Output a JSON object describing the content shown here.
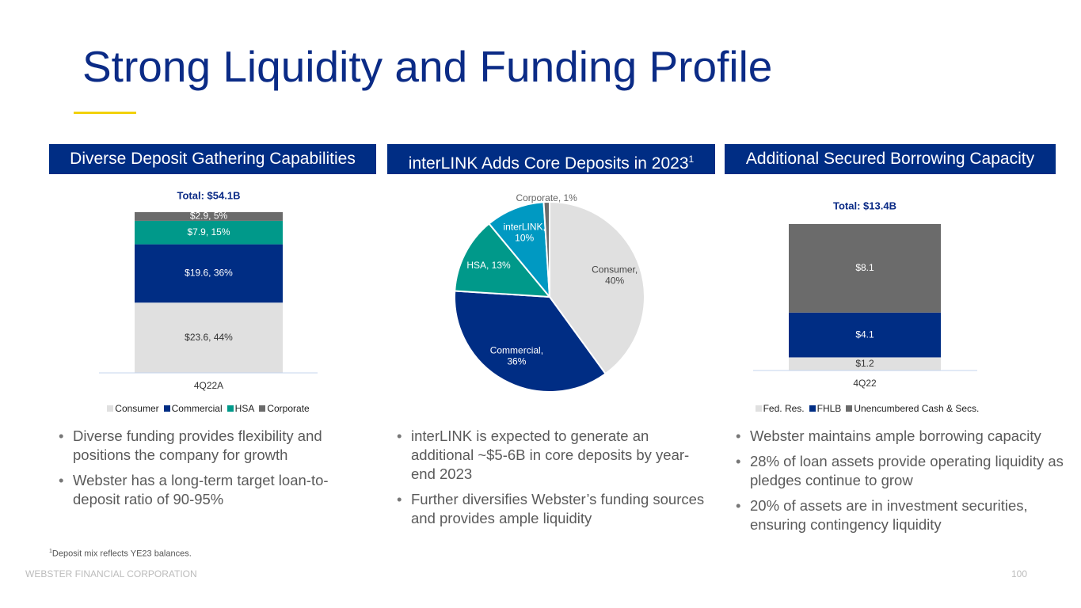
{
  "title": "Strong Liquidity and Funding Profile",
  "panels": [
    {
      "header": "Diverse Deposit Gathering Capabilities",
      "bullets": [
        "Diverse funding provides flexibility and positions the company for growth",
        "Webster has a long-term target loan-to-deposit ratio of 90-95%"
      ]
    },
    {
      "header": "interLINK Adds Core Deposits in 2023",
      "header_note": "1",
      "bullets": [
        "interLINK is expected to generate an additional ~$5-6B in core deposits by year-end 2023",
        "Further diversifies Webster’s funding sources and provides ample liquidity"
      ]
    },
    {
      "header": "Additional Secured Borrowing Capacity",
      "bullets": [
        "Webster maintains ample borrowing capacity",
        "28% of loan assets provide operating liquidity as pledges continue to grow",
        "20% of assets are in investment securities, ensuring contingency liquidity"
      ]
    }
  ],
  "chart_data": [
    {
      "type": "stacked-bar",
      "title": "Total: $54.1B",
      "categories": [
        "4Q22A"
      ],
      "series": [
        {
          "name": "Consumer",
          "color": "#e0e0e0",
          "values": [
            23.6
          ],
          "value_labels": [
            "$23.6, 44%"
          ]
        },
        {
          "name": "Commercial",
          "color": "#002d84",
          "values": [
            19.6
          ],
          "value_labels": [
            "$19.6, 36%"
          ]
        },
        {
          "name": "HSA",
          "color": "#00998a",
          "values": [
            7.9
          ],
          "value_labels": [
            "$7.9, 15%"
          ]
        },
        {
          "name": "Corporate",
          "color": "#6b6b6b",
          "values": [
            2.9
          ],
          "value_labels": [
            "$2.9, 5%"
          ]
        }
      ]
    },
    {
      "type": "pie",
      "categories": [
        "Consumer",
        "Commercial",
        "HSA",
        "interLINK",
        "Corporate"
      ],
      "values": [
        40,
        36,
        13,
        10,
        1
      ],
      "value_labels": [
        "Consumer, 40%",
        "Commercial, 36%",
        "HSA, 13%",
        "interLINK, 10%",
        "Corporate, 1%"
      ],
      "colors": [
        "#e0e0e0",
        "#002d84",
        "#00998a",
        "#0099c2",
        "#6b6b6b"
      ]
    },
    {
      "type": "stacked-bar",
      "title": "Total: $13.4B",
      "categories": [
        "4Q22"
      ],
      "series": [
        {
          "name": "Fed. Res.",
          "color": "#e0e0e0",
          "values": [
            1.2
          ],
          "value_labels": [
            "$1.2"
          ]
        },
        {
          "name": "FHLB",
          "color": "#002d84",
          "values": [
            4.1
          ],
          "value_labels": [
            "$4.1"
          ]
        },
        {
          "name": "Unencumbered Cash & Secs.",
          "color": "#6b6b6b",
          "values": [
            8.1
          ],
          "value_labels": [
            "$8.1"
          ]
        }
      ]
    }
  ],
  "footnote_marker": "1",
  "footnote": "Deposit mix reflects YE23 balances.",
  "footer": "WEBSTER FINANCIAL CORPORATION",
  "page_number": "100"
}
